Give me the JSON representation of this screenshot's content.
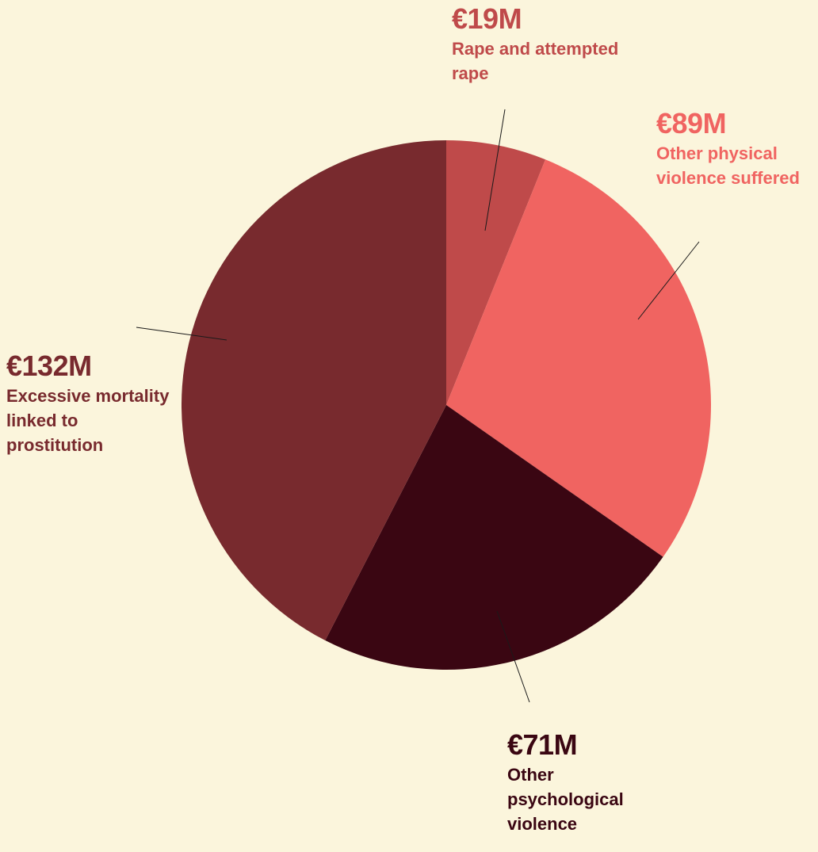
{
  "chart_data": {
    "type": "pie",
    "categories": [
      "Rape and attempted rape",
      "Other physical violence suffered",
      "Other psychological violence",
      "Excessive mortality linked to prostitution"
    ],
    "values": [
      19,
      89,
      71,
      132
    ],
    "value_labels": [
      "€19M",
      "€89M",
      "€71M",
      "€132M"
    ],
    "colors": [
      "#bf4a4a",
      "#f06461",
      "#3a0612",
      "#782a2e"
    ]
  }
}
